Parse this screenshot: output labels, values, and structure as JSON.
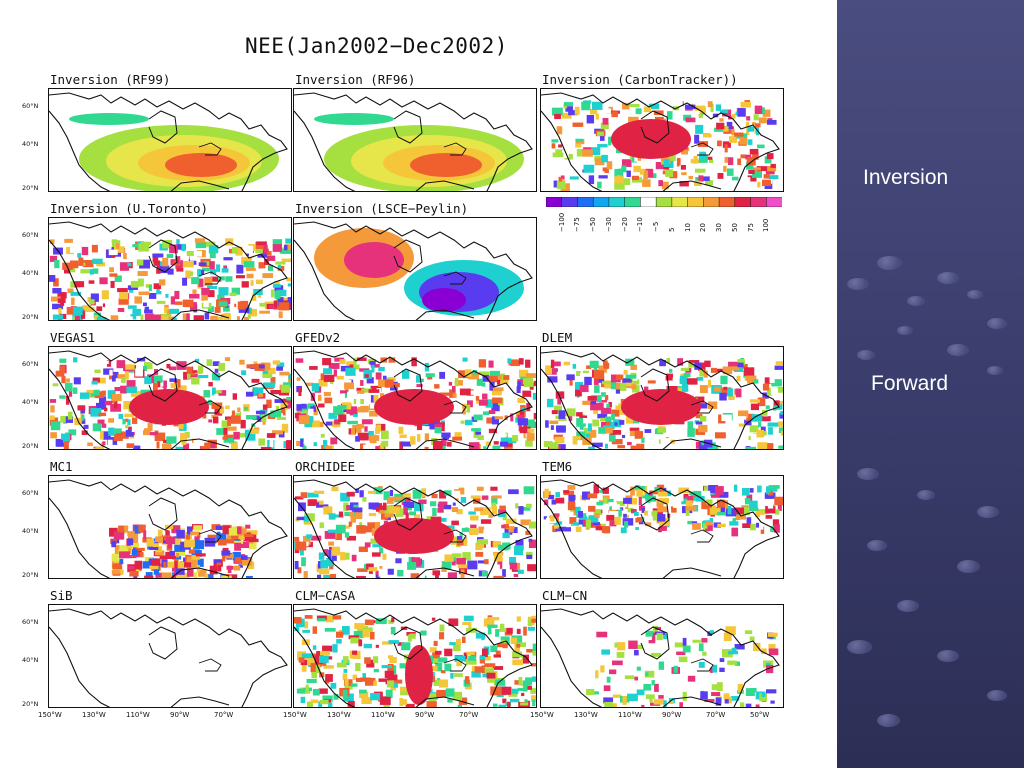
{
  "slide_title": "NEE(Jan2002−Dec2002)",
  "panels": [
    {
      "title": "Inversion (RF99)",
      "pattern": "rf"
    },
    {
      "title": "Inversion (RF96)",
      "pattern": "rf"
    },
    {
      "title": "Inversion (CarbonTracker))",
      "pattern": "ct"
    },
    {
      "title": "Inversion (U.Toronto)",
      "pattern": "ut"
    },
    {
      "title": "Inversion (LSCE−Peylin)",
      "pattern": "lsce"
    },
    {
      "title": "VEGAS1",
      "pattern": "noisy"
    },
    {
      "title": "GFEDv2",
      "pattern": "noisy"
    },
    {
      "title": "DLEM",
      "pattern": "noisy"
    },
    {
      "title": "MC1",
      "pattern": "mc1"
    },
    {
      "title": "ORCHIDEE",
      "pattern": "noisy"
    },
    {
      "title": "TEM6",
      "pattern": "tem6"
    },
    {
      "title": "SiB",
      "pattern": "empty"
    },
    {
      "title": "CLM−CASA",
      "pattern": "casa"
    },
    {
      "title": "CLM−CN",
      "pattern": "clmcn"
    }
  ],
  "lat_labels": [
    "60°N",
    "40°N",
    "20°N"
  ],
  "lon_labels": [
    "150°W",
    "130°W",
    "110°W",
    "90°W",
    "70°W",
    "50°W"
  ],
  "colorbar": {
    "labels": [
      "−100",
      "−75",
      "−50",
      "−30",
      "−20",
      "−10",
      "−5",
      "5",
      "10",
      "20",
      "30",
      "50",
      "75",
      "100"
    ],
    "colors": [
      "#8a00d4",
      "#5a3cf0",
      "#1e6ef5",
      "#10a6f0",
      "#1fd0d0",
      "#30d890",
      "#ffffff",
      "#a6e040",
      "#e6e64a",
      "#f5c63a",
      "#f59a3a",
      "#f0602e",
      "#e02244",
      "#e6327a",
      "#f04ec8"
    ]
  },
  "sidebar": {
    "labels": [
      "Inversion",
      "Forward"
    ]
  }
}
